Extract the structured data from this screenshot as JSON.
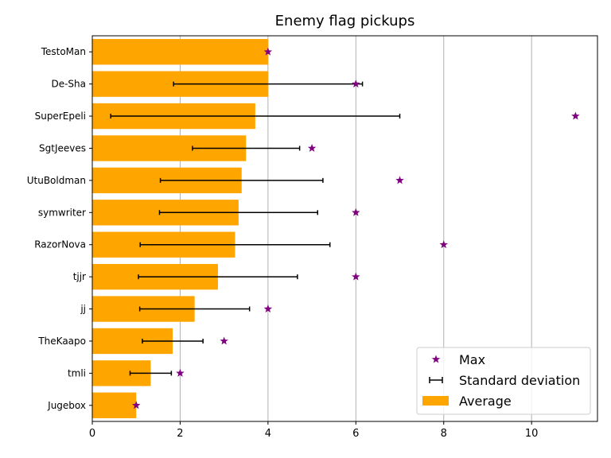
{
  "chart_data": {
    "type": "bar",
    "orientation": "horizontal",
    "title": "Enemy flag pickups",
    "xlabel": "",
    "ylabel": "",
    "xlim": [
      0,
      11.5
    ],
    "xticks": [
      0,
      2,
      4,
      6,
      8,
      10
    ],
    "grid": "x",
    "legend_position": "lower-right",
    "categories": [
      "TestoMan",
      "De-Sha",
      "SuperEpeli",
      "SgtJeeves",
      "UtuBoldman",
      "symwriter",
      "RazorNova",
      "tjjr",
      "jj",
      "TheKaapo",
      "tmli",
      "Jugebox"
    ],
    "series": [
      {
        "name": "Average",
        "kind": "bar",
        "color": "#ffa500",
        "values": [
          4.0,
          4.0,
          3.71,
          3.5,
          3.4,
          3.33,
          3.25,
          2.86,
          2.33,
          1.83,
          1.33,
          1.0
        ]
      },
      {
        "name": "Standard deviation",
        "kind": "errorbar",
        "color": "#000000",
        "values": [
          null,
          2.15,
          3.29,
          1.22,
          1.85,
          1.8,
          2.16,
          1.81,
          1.25,
          0.69,
          0.47,
          null
        ]
      },
      {
        "name": "Max",
        "kind": "marker",
        "marker": "star",
        "color": "#800080",
        "values": [
          4,
          6,
          11,
          5,
          7,
          6,
          8,
          6,
          4,
          3,
          2,
          1
        ]
      }
    ]
  }
}
